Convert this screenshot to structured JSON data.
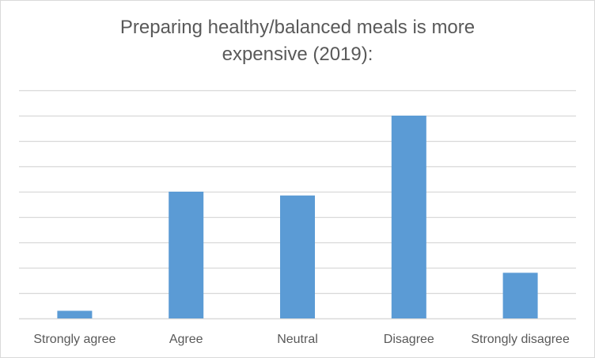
{
  "chart_data": {
    "type": "bar",
    "title_line1": "Preparing healthy/balanced  meals is more",
    "title_line2": "expensive (2019):",
    "xlabel": "",
    "ylabel": "",
    "categories": [
      "Strongly agree",
      "Agree",
      "Neutral",
      "Disagree",
      "Strongly disagree"
    ],
    "values": [
      0.3,
      5,
      4.85,
      8,
      1.8
    ],
    "ylim": [
      0,
      9
    ],
    "ytick_step": 1,
    "grid": true,
    "y_tick_labels_shown": false,
    "legend": "none",
    "bar_color": "#5b9bd5",
    "grid_color": "#d9d9d9",
    "text_color": "#595959"
  }
}
